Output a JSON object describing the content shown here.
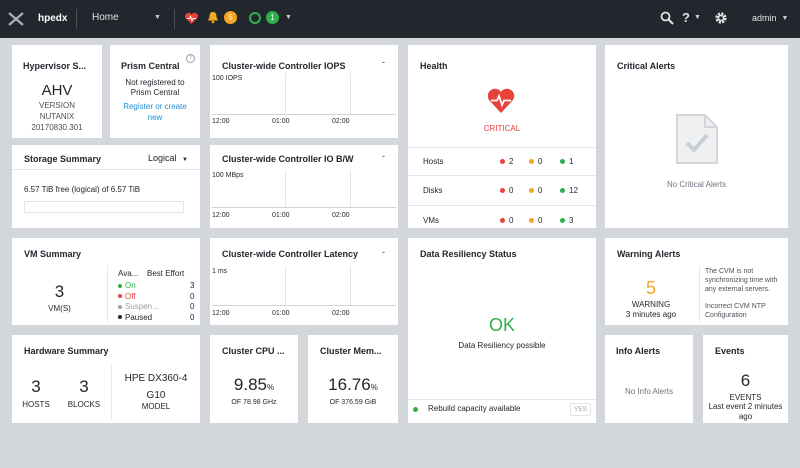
{
  "topbar": {
    "cluster_name": "hpedx",
    "nav_label": "Home",
    "alerts_count": "5",
    "tasks_count": "1",
    "user": "admin"
  },
  "hypervisor": {
    "title": "Hypervisor S...",
    "name": "AHV",
    "line1": "VERSION",
    "line2": "NUTANIX",
    "line3": "20170830.301"
  },
  "prism": {
    "title": "Prism Central",
    "status": "Not registered to Prism Central",
    "link": "Register or create new"
  },
  "iops": {
    "title": "Cluster-wide Controller IOPS",
    "menu": "-",
    "ylabel": "100 IOPS",
    "ticks": [
      "12:00",
      "01:00",
      "02:00"
    ]
  },
  "bw": {
    "title": "Cluster-wide Controller IO B/W",
    "menu": "-",
    "ylabel": "100 MBps",
    "ticks": [
      "12:00",
      "01:00",
      "02:00"
    ]
  },
  "latency": {
    "title": "Cluster-wide Controller Latency",
    "menu": "-",
    "ylabel": "1 ms",
    "ticks": [
      "12:00",
      "01:00",
      "02:00"
    ]
  },
  "health": {
    "title": "Health",
    "status": "CRITICAL",
    "rows": [
      {
        "label": "Hosts",
        "red": "2",
        "yellow": "0",
        "green": "1"
      },
      {
        "label": "Disks",
        "red": "0",
        "yellow": "0",
        "green": "12"
      },
      {
        "label": "VMs",
        "red": "0",
        "yellow": "0",
        "green": "3"
      }
    ]
  },
  "critical": {
    "title": "Critical Alerts",
    "empty": "No Critical Alerts"
  },
  "storage": {
    "title": "Storage Summary",
    "mode": "Logical",
    "used": "6.57 TiB",
    "mid": "free (logical) of",
    "total": "6.57 TiB"
  },
  "vm": {
    "title": "VM Summary",
    "count": "3",
    "unit": "VM(S)",
    "col1": "Ava...",
    "col2": "Best Effort",
    "rows": [
      {
        "label": "On",
        "value": "3",
        "color": "#2db04b"
      },
      {
        "label": "Off",
        "value": "0",
        "color": "#e8423b"
      },
      {
        "label": "Suspen...",
        "value": "0",
        "color": "#9aa1a9"
      },
      {
        "label": "Paused",
        "value": "0",
        "color": "#22272e"
      }
    ]
  },
  "resiliency": {
    "title": "Data Resiliency Status",
    "status": "OK",
    "subtitle": "Data Resiliency possible",
    "rebuild": "Rebuild capacity available",
    "rebuild_value": "YES"
  },
  "warning": {
    "title": "Warning Alerts",
    "count": "5",
    "label": "WARNING",
    "time": "3 minutes ago",
    "msg1": "The CVM is not synchronizing time with any external servers.",
    "msg2": "Incorrect CVM NTP Configuration"
  },
  "hardware": {
    "title": "Hardware Summary",
    "hosts": "3",
    "hosts_label": "HOSTS",
    "blocks": "3",
    "blocks_label": "BLOCKS",
    "model": "HPE DX360-4 G10",
    "model_label": "MODEL"
  },
  "cpu": {
    "title": "Cluster CPU ...",
    "value": "9.85",
    "unit": "%",
    "sub": "OF 78.98 GHz"
  },
  "mem": {
    "title": "Cluster Mem...",
    "value": "16.76",
    "unit": "%",
    "sub": "OF 376.59 GiB"
  },
  "info": {
    "title": "Info Alerts",
    "empty": "No Info Alerts"
  },
  "events": {
    "title": "Events",
    "count": "6",
    "label": "EVENTS",
    "time": "Last event 2 minutes ago"
  },
  "colors": {
    "topbar": "#22272e",
    "critical": "#e8423b",
    "warning": "#f5a623",
    "ok": "#2db04b",
    "link": "#1f8fd6"
  }
}
